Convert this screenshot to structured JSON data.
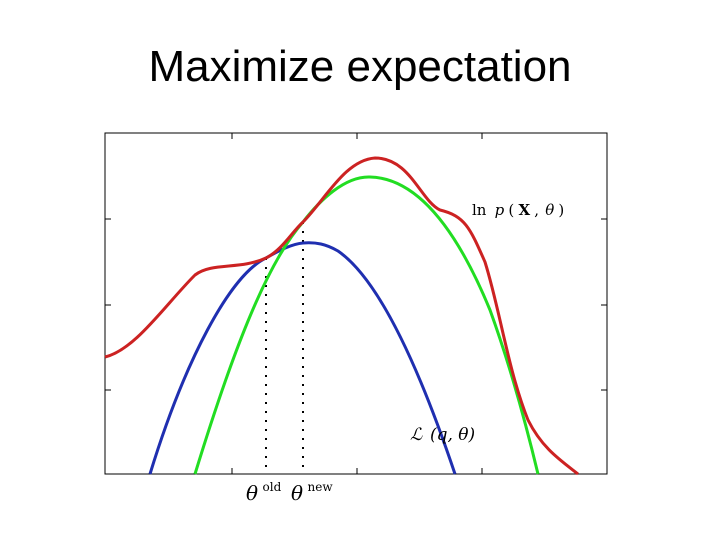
{
  "slide": {
    "title": "Maximize expectation"
  },
  "curves": {
    "log_likelihood": {
      "label_ln": "ln",
      "label_p": "p",
      "label_open": "(",
      "label_X": "X",
      "label_comma": ",",
      "label_theta": "θ",
      "label_close": ")",
      "color": "#cc2222"
    },
    "lower_bound_old": {
      "color": "#1f2fb0"
    },
    "lower_bound_new": {
      "color": "#22dd22"
    },
    "lower_bound_label": {
      "label_L": "ℒ",
      "label_args": "(q, θ)"
    }
  },
  "markers": {
    "theta_old": {
      "symbol": "θ",
      "superscript": "old"
    },
    "theta_new": {
      "symbol": "θ",
      "superscript": "new"
    }
  }
}
